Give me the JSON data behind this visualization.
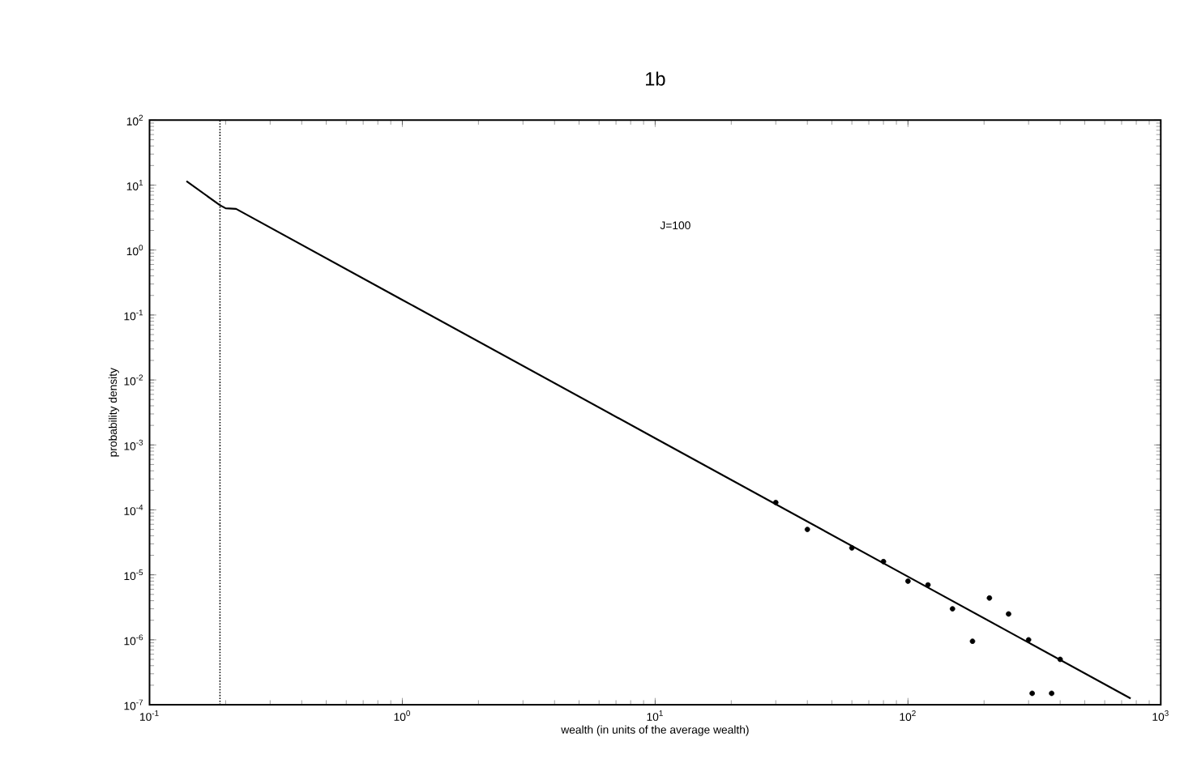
{
  "chart_data": {
    "type": "line",
    "title": "1b",
    "xlabel": "wealth (in units of the average wealth)",
    "ylabel": "probability density",
    "annotations": [
      "J=100"
    ],
    "log": "xy",
    "grid": false,
    "xlim": [
      0.1,
      1000
    ],
    "ylim": [
      1e-07,
      100
    ],
    "xticks": [
      {
        "value": 0.1,
        "label": "10$^{-1}$"
      },
      {
        "value": 1,
        "label": "10$^{0}$"
      },
      {
        "value": 10,
        "label": "10$^{1}$"
      },
      {
        "value": 100,
        "label": "10$^{2}$"
      },
      {
        "value": 1000,
        "label": "10$^{3}$"
      }
    ],
    "yticks": [
      {
        "value": 1e-07,
        "label": "10$^{-7}$"
      },
      {
        "value": 1e-06,
        "label": "10$^{-6}$"
      },
      {
        "value": 1e-05,
        "label": "10$^{-5}$"
      },
      {
        "value": 0.0001,
        "label": "10$^{-4}$"
      },
      {
        "value": 0.001,
        "label": "10$^{-3}$"
      },
      {
        "value": 0.01,
        "label": "10$^{-2}$"
      },
      {
        "value": 0.1,
        "label": "10$^{-1}$"
      },
      {
        "value": 1,
        "label": "10$^{0}$"
      },
      {
        "value": 10,
        "label": "10$^{1}$"
      },
      {
        "value": 100,
        "label": "10$^{2}$"
      }
    ],
    "ref_lines": [
      {
        "axis": "x",
        "value": 0.19,
        "color": "#000000",
        "line_style": "dotted"
      }
    ],
    "series": [
      {
        "color": "#000000",
        "marker": "none",
        "x": [
          0.14,
          0.19,
          0.2,
          0.22,
          1,
          10,
          100,
          760
        ],
        "values": [
          11.5,
          4.9,
          4.4,
          4.3,
          0.171,
          0.00127,
          9.4e-06,
          1.25e-07
        ]
      },
      {
        "type": "scatter",
        "color": "#000000",
        "marker": "circle",
        "x": [
          30,
          40,
          60,
          80,
          100,
          120,
          150,
          180,
          210,
          250,
          300,
          310,
          370,
          400
        ],
        "values": [
          0.00013,
          5e-05,
          2.6e-05,
          1.6e-05,
          8e-06,
          7e-06,
          3e-06,
          9.5e-07,
          4.4e-06,
          2.5e-06,
          1e-06,
          1.5e-07,
          1.5e-07,
          5e-07
        ]
      }
    ]
  }
}
